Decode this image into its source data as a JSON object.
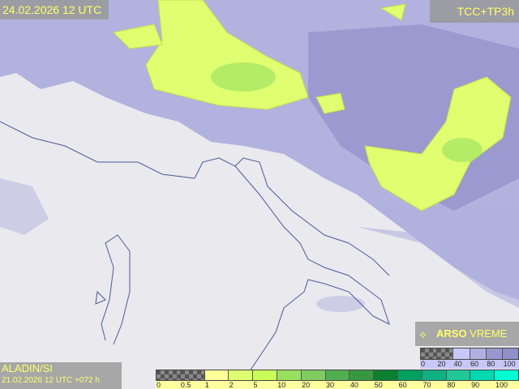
{
  "header": {
    "valid_time": "24.02.2026 12 UTC",
    "product": "TCC+TP3h"
  },
  "footer": {
    "model": "ALADIN/SI",
    "run": "21.02.2026 12 UTC +072 h"
  },
  "brand": {
    "bold": "ARSO",
    "normal": " VREME",
    "icon": "satellite-dish-icon"
  },
  "precip_legend": {
    "labels": [
      "0",
      "0.5",
      "1",
      "2",
      "5",
      "10",
      "20",
      "30",
      "40",
      "50",
      "60",
      "70",
      "80",
      "90",
      "100"
    ],
    "colors": [
      "checker",
      "checker",
      "#ffff99",
      "#e0ff70",
      "#c8ff58",
      "#98e060",
      "#80cc60",
      "#50b050",
      "#389840",
      "#0a8030",
      "#00a060",
      "#10b080",
      "#20c898",
      "#00d8b0",
      "#00ffd0"
    ]
  },
  "cloud_legend": {
    "labels": [
      "0",
      "20",
      "40",
      "60",
      "80",
      "100"
    ],
    "colors": [
      "checker",
      "checker",
      "#c8c8f8",
      "#b0b0e0",
      "#9898d0",
      "#9090c8"
    ]
  },
  "colors": {
    "land": "#e9e9ee",
    "cloud": "#a8a8dc",
    "precip": "#e0ff70",
    "coast": "#4a5a9a",
    "label_text": "#ffff66"
  }
}
